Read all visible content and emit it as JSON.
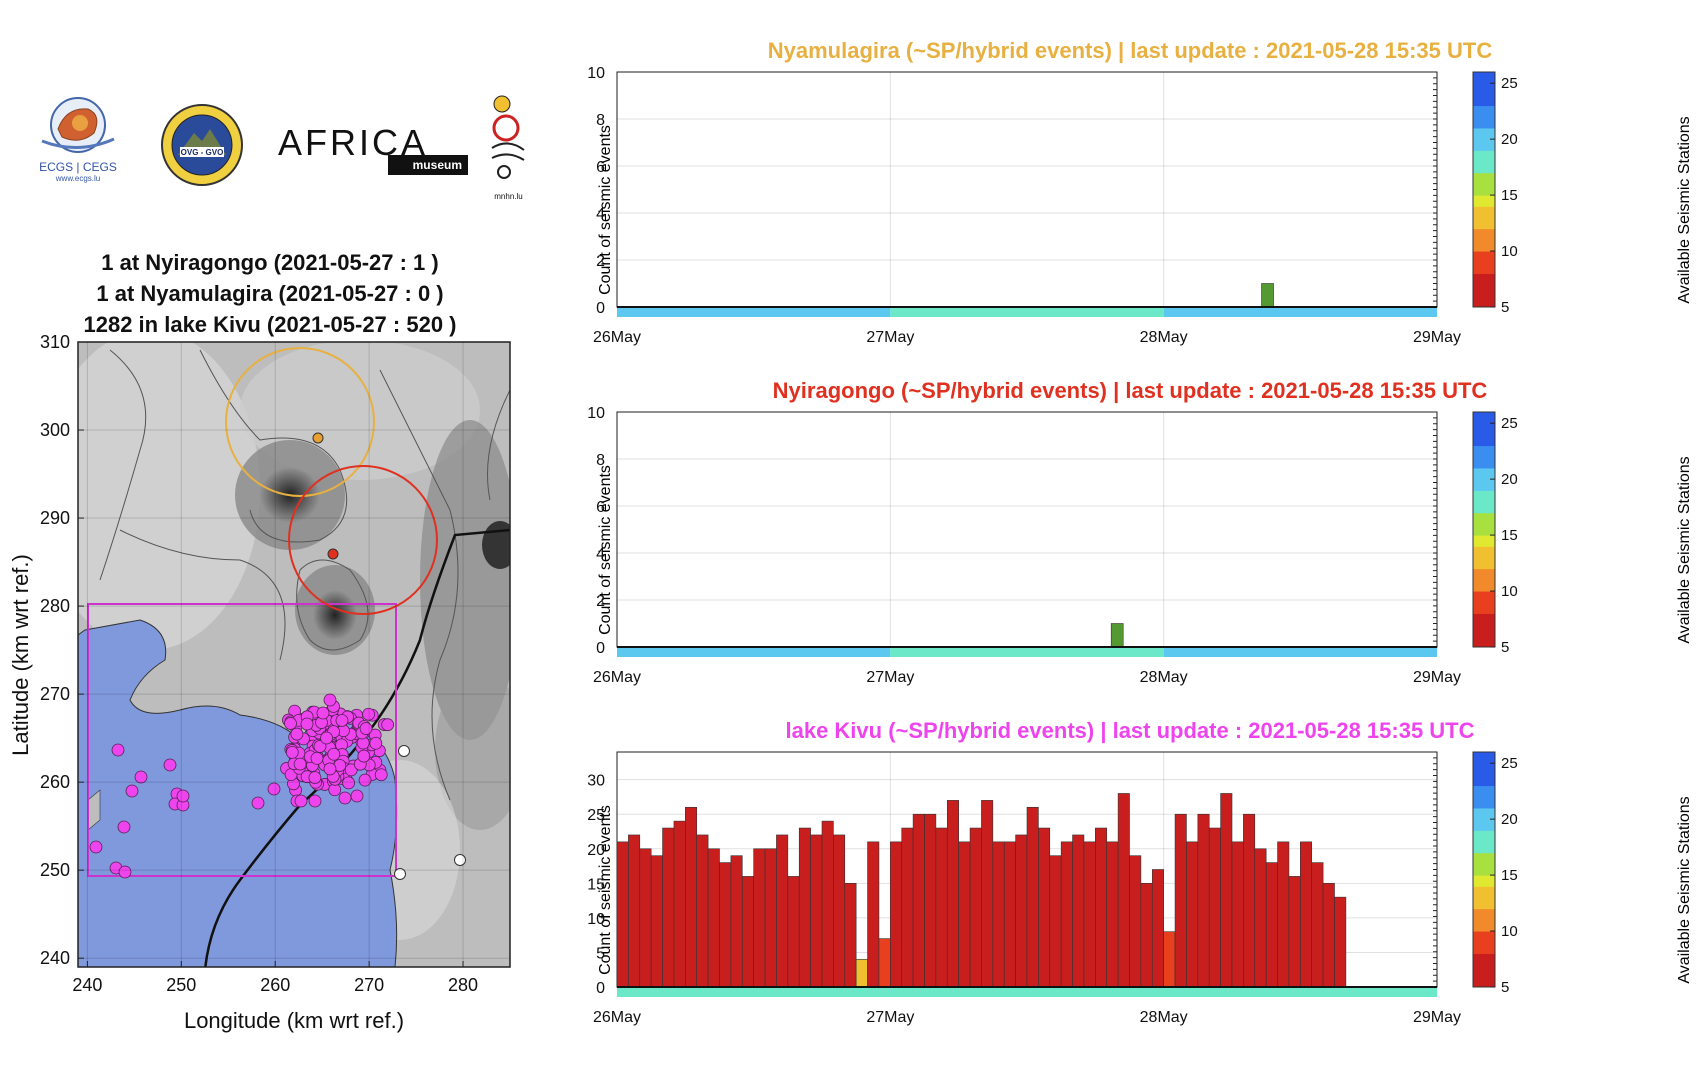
{
  "logos": {
    "ecgs_text": "ECGS | CEGS",
    "ecgs_url": "www.ecgs.lu",
    "ovg_text": "OVG - GVO",
    "africa_text": "AFRICA",
    "museum_text": "museum",
    "mnhn_text": "mnhn.lu"
  },
  "map": {
    "title_lines": [
      "1 at Nyiragongo (2021-05-27 : 1 )",
      "1 at Nyamulagira (2021-05-27 : 0 )",
      "1282 in lake Kivu (2021-05-27 : 520 )"
    ],
    "xlabel": "Longitude (km wrt ref.)",
    "ylabel": "Latitude (km wrt ref.)",
    "xlim": [
      239,
      285
    ],
    "ylim": [
      239,
      310
    ],
    "xticks": [
      240,
      250,
      260,
      270,
      280
    ],
    "yticks": [
      240,
      250,
      260,
      270,
      280,
      290,
      300,
      310
    ],
    "colors": {
      "lake": "#8099dd",
      "box": "#cc33cc",
      "nyamulagira": "#e8b040",
      "nyiragongo": "#e03020",
      "events": "#ee44ee"
    }
  },
  "colorbar": {
    "label": "Available Seismic Stations",
    "ticks": [
      5,
      10,
      15,
      20,
      25
    ],
    "range": [
      5,
      26
    ]
  },
  "chart_data": [
    {
      "type": "bar",
      "title": "Nyamulagira (~SP/hybrid events) | last update : 2021-05-28 15:35 UTC",
      "title_color": "#e8b040",
      "ylabel": "Count of seismic events",
      "xticks": [
        "26May",
        "27May",
        "28May",
        "29May"
      ],
      "ylim": [
        0,
        10
      ],
      "yticks": [
        0,
        2,
        4,
        6,
        8,
        10
      ],
      "bars": [
        {
          "day": 2.38,
          "value": 1,
          "stations": 15
        }
      ],
      "station_band": [
        {
          "from": 0,
          "to": 1,
          "stations": 19
        },
        {
          "from": 1,
          "to": 2,
          "stations": 17
        },
        {
          "from": 2,
          "to": 3,
          "stations": 19
        }
      ]
    },
    {
      "type": "bar",
      "title": "Nyiragongo (~SP/hybrid events) | last update : 2021-05-28 15:35 UTC",
      "title_color": "#e03020",
      "ylabel": "Count of seismic events",
      "xticks": [
        "26May",
        "27May",
        "28May",
        "29May"
      ],
      "ylim": [
        0,
        10
      ],
      "yticks": [
        0,
        2,
        4,
        6,
        8,
        10
      ],
      "bars": [
        {
          "day": 1.83,
          "value": 1,
          "stations": 15
        }
      ],
      "station_band": [
        {
          "from": 0,
          "to": 1,
          "stations": 19
        },
        {
          "from": 1,
          "to": 2,
          "stations": 17
        },
        {
          "from": 2,
          "to": 3,
          "stations": 19
        }
      ]
    },
    {
      "type": "bar",
      "title": "lake Kivu (~SP/hybrid events) | last update : 2021-05-28 15:35 UTC",
      "title_color": "#ee44ee",
      "ylabel": "Count of seismic events",
      "xticks": [
        "26May",
        "27May",
        "28May",
        "29May"
      ],
      "ylim": [
        0,
        34
      ],
      "yticks": [
        0,
        5,
        10,
        15,
        20,
        25,
        30
      ],
      "bin_hours": 1,
      "values": [
        21,
        22,
        20,
        19,
        23,
        24,
        26,
        22,
        20,
        18,
        19,
        16,
        20,
        20,
        22,
        16,
        23,
        22,
        24,
        22,
        15,
        4,
        21,
        7,
        21,
        23,
        25,
        25,
        23,
        27,
        21,
        23,
        27,
        21,
        21,
        22,
        26,
        23,
        19,
        21,
        22,
        21,
        23,
        21,
        28,
        19,
        15,
        17,
        8,
        25,
        21,
        25,
        23,
        28,
        21,
        25,
        20,
        18,
        21,
        16,
        21,
        18,
        15,
        13
      ],
      "bar_stations": {
        "21": 13,
        "23": 9,
        "48": 9
      },
      "station_band": [
        {
          "from": 0,
          "to": 3,
          "stations": 17
        }
      ]
    }
  ]
}
